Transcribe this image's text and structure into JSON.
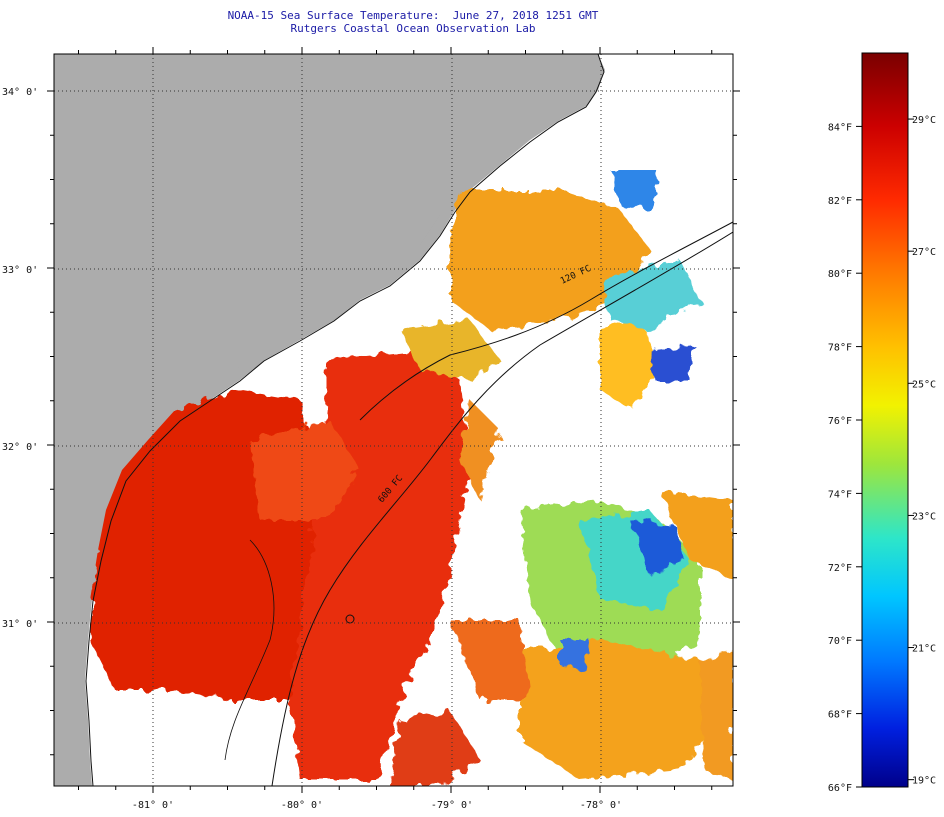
{
  "header": {
    "title": "NOAA-15 Sea Surface Temperature:  June 27, 2018 1251 GMT",
    "subtitle": "Rutgers Coastal Ocean Observation Lab"
  },
  "map": {
    "lat_labels": [
      "34° 0'",
      "33° 0'",
      "32° 0'",
      "31° 0'"
    ],
    "lon_labels": [
      "-81° 0'",
      "-80° 0'",
      "-79° 0'",
      "-78° 0'"
    ],
    "contour_labels": [
      "120 FC",
      "600 FC"
    ],
    "colors": {
      "land": "#acacac",
      "cloud": "#ffffff",
      "frame": "#000000"
    }
  },
  "colorbar": {
    "f_labels": [
      "84°F",
      "82°F",
      "80°F",
      "78°F",
      "76°F",
      "74°F",
      "72°F",
      "70°F",
      "68°F",
      "66°F"
    ],
    "c_labels": [
      "29°C",
      "27°C",
      "25°C",
      "23°C",
      "21°C",
      "19°C"
    ],
    "range_f": [
      66,
      86
    ],
    "colors": [
      "#7a0000",
      "#cc0000",
      "#ff2a00",
      "#ff7a00",
      "#ffc000",
      "#f2f200",
      "#9ee63c",
      "#2ee6c8",
      "#00c6ff",
      "#0078ff",
      "#0020e0",
      "#00008a"
    ]
  }
}
